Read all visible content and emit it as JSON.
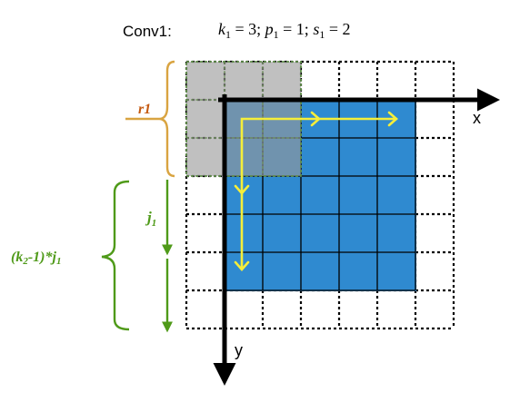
{
  "title": {
    "prefix": "Conv1:",
    "k_var": "k",
    "k_sub": "1",
    "k_val": " = 3; ",
    "p_var": "p",
    "p_sub": "1",
    "p_val": " = 1; ",
    "s_var": "s",
    "s_sub": "1",
    "s_val": " = 2"
  },
  "axes": {
    "x": "x",
    "y": "y"
  },
  "labels": {
    "r1": "r1",
    "j_main": "j",
    "j_sub": "1",
    "k2_open": "(k",
    "k2_sub": "2",
    "k2_rest": "-1)*j",
    "k2_j_sub": "1"
  },
  "grid": {
    "rows": 7,
    "cols": 7,
    "padding": 1,
    "input_size": 5,
    "kernel_size": 3
  },
  "colors": {
    "input_fill": "#2f8ad0",
    "receptive_fill": "#9a9a9a",
    "receptive_border": "#5f8c4a",
    "path": "#f5ee3a",
    "brace_r1": "#d9a441",
    "brace_green": "#4f9a19",
    "label_r1": "#c55a11",
    "axis": "#000000"
  }
}
